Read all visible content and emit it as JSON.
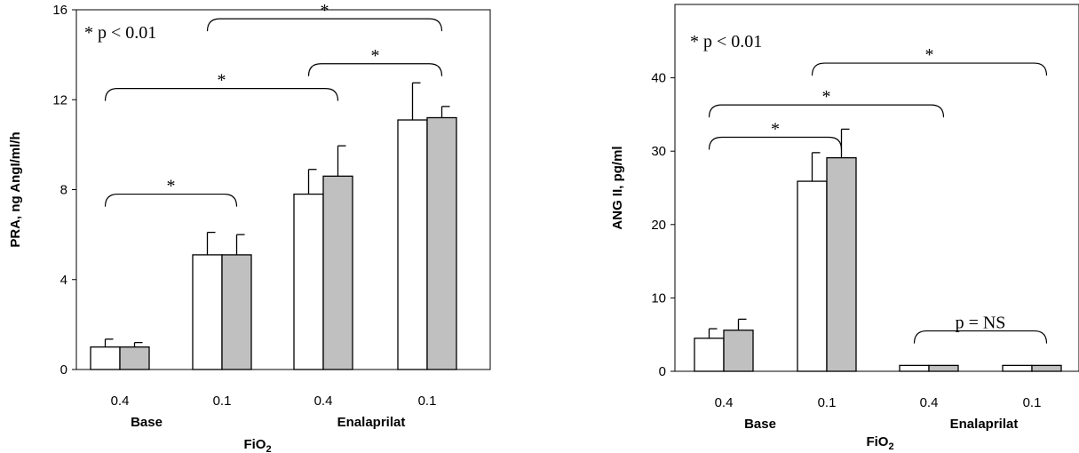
{
  "chart_data": [
    {
      "type": "bar",
      "title": "",
      "ylabel": "PRA, ng AngI/ml/h",
      "xlabel": "FiO2",
      "ylim": [
        0,
        16
      ],
      "yticks": [
        0,
        4,
        8,
        12,
        16
      ],
      "categories": [
        "0.4",
        "0.1",
        "0.4",
        "0.1"
      ],
      "groups": [
        {
          "label": "Base",
          "categories": [
            0,
            1
          ]
        },
        {
          "label": "Enalaprilat",
          "categories": [
            2,
            3
          ]
        }
      ],
      "series": [
        {
          "color": "#ffffff",
          "values": [
            1.0,
            5.1,
            7.8,
            11.1
          ],
          "errors": [
            0.35,
            1.0,
            1.1,
            1.65
          ]
        },
        {
          "color": "#c0c0c0",
          "values": [
            1.0,
            5.1,
            8.6,
            11.2
          ],
          "errors": [
            0.2,
            0.9,
            1.35,
            0.5
          ]
        }
      ],
      "annotations": [
        {
          "text": "* p < 0.01"
        },
        {
          "text": "*",
          "from": 0,
          "to": 1,
          "level": 7.8
        },
        {
          "text": "*",
          "from": 0,
          "to": 2,
          "level": 12.5
        },
        {
          "text": "*",
          "from": 2,
          "to": 3,
          "level": 13.6
        },
        {
          "text": "*",
          "from": 1,
          "to": 3,
          "level": 15.6
        }
      ]
    },
    {
      "type": "bar",
      "title": "",
      "ylabel": "ANG II, pg/ml",
      "xlabel": "FiO2",
      "ylim": [
        0,
        50
      ],
      "yticks": [
        0,
        10,
        20,
        30,
        40
      ],
      "categories": [
        "0.4",
        "0.1",
        "0.4",
        "0.1"
      ],
      "groups": [
        {
          "label": "Base",
          "categories": [
            0,
            1
          ]
        },
        {
          "label": "Enalaprilat",
          "categories": [
            2,
            3
          ]
        }
      ],
      "series": [
        {
          "color": "#ffffff",
          "values": [
            4.5,
            25.9,
            0.8,
            0.8
          ],
          "errors": [
            1.3,
            3.9,
            0,
            0
          ]
        },
        {
          "color": "#c0c0c0",
          "values": [
            5.6,
            29.1,
            0.8,
            0.8
          ],
          "errors": [
            1.5,
            3.9,
            0,
            0
          ]
        }
      ],
      "annotations": [
        {
          "text": "* p < 0.01"
        },
        {
          "text": "*",
          "from": 0,
          "to": 1,
          "level": 31.9
        },
        {
          "text": "*",
          "from": 0,
          "to": 2,
          "level": 36.3
        },
        {
          "text": "*",
          "from": 1,
          "to": 3,
          "level": 42.0
        },
        {
          "text": "p = NS",
          "from": 2,
          "to": 3,
          "level": 5.5
        }
      ]
    }
  ]
}
